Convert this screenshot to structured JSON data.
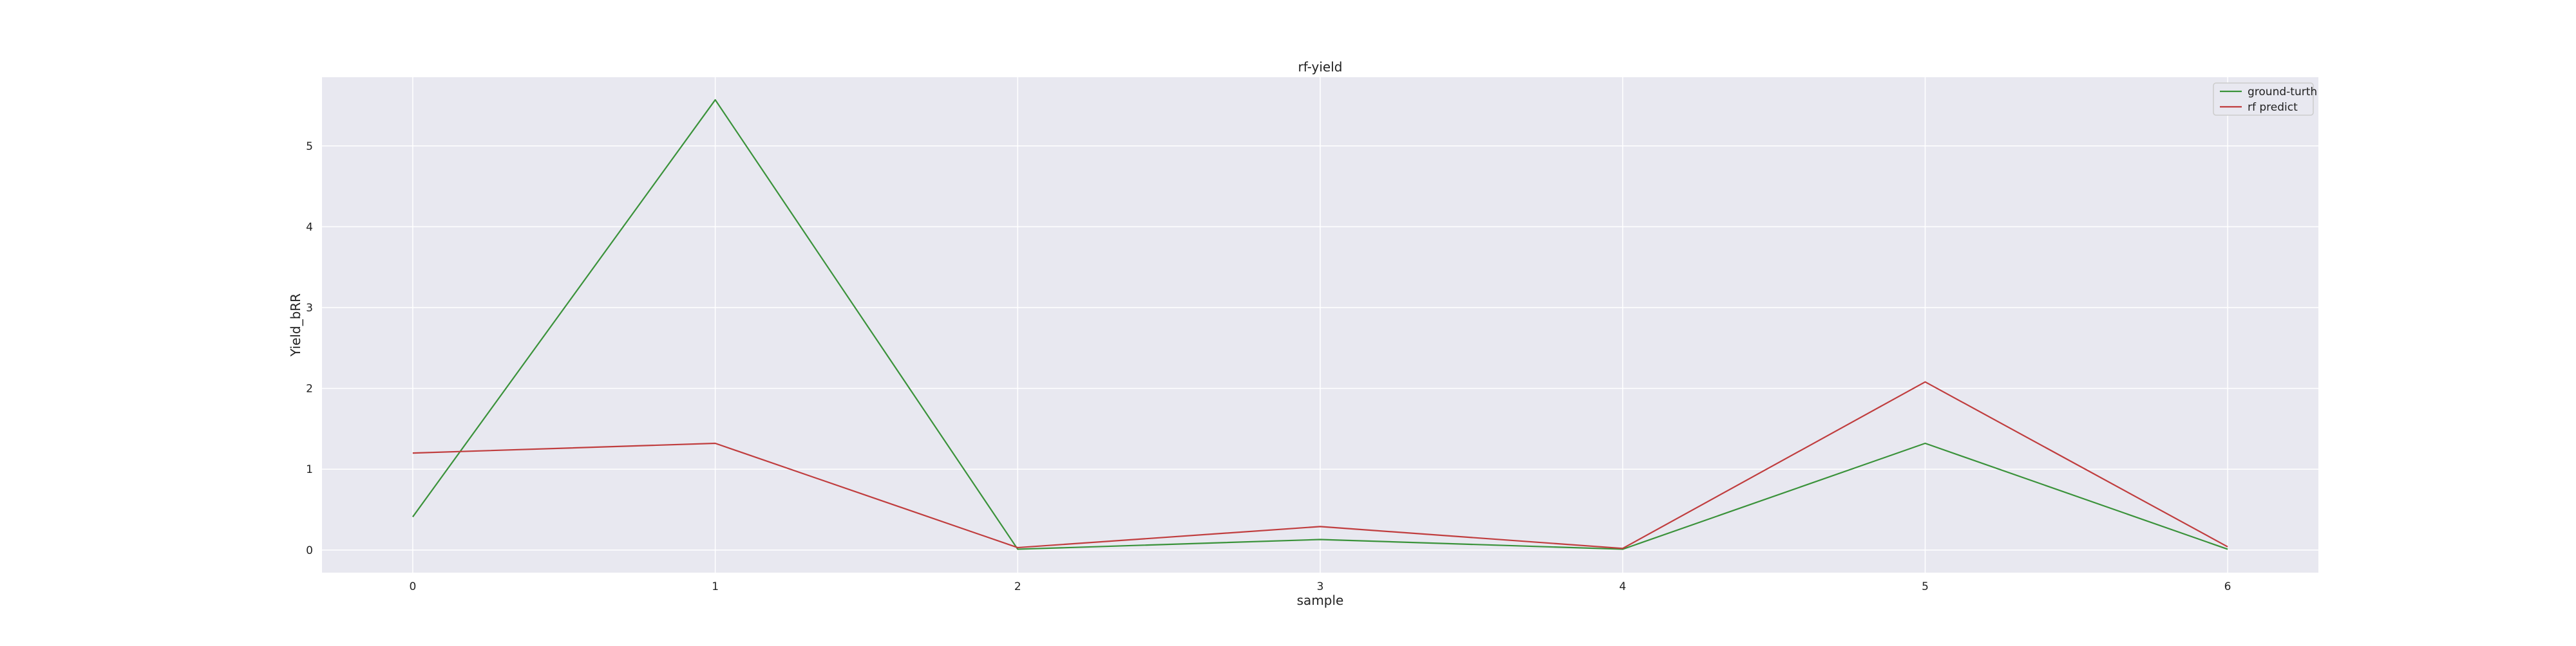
{
  "chart_data": {
    "type": "line",
    "title": "rf-yield",
    "xlabel": "sample",
    "ylabel": "Yield_bRR",
    "x": [
      0,
      1,
      2,
      3,
      4,
      5,
      6
    ],
    "xlim": [
      -0.3,
      6.3
    ],
    "ylim": [
      -0.28,
      5.85
    ],
    "xticks": [
      0,
      1,
      2,
      3,
      4,
      5,
      6
    ],
    "yticks": [
      0,
      1,
      2,
      3,
      4,
      5
    ],
    "grid": true,
    "background": "#e8e8f0",
    "grid_color": "#ffffff",
    "legend_position": "top-right",
    "series": [
      {
        "name": "ground-turth",
        "color": "#3a923a",
        "values": [
          0.41,
          5.57,
          0.01,
          0.13,
          0.01,
          1.32,
          0.01
        ]
      },
      {
        "name": "rf predict",
        "color": "#c03d3e",
        "values": [
          1.2,
          1.32,
          0.03,
          0.29,
          0.02,
          2.08,
          0.04
        ]
      }
    ]
  }
}
